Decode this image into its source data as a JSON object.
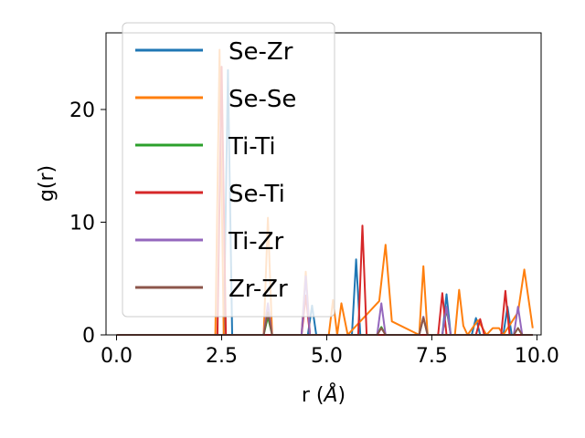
{
  "chart_data": {
    "type": "line",
    "xlabel": "r (",
    "xlabel_unit": "Å",
    "xlabel_close": ")",
    "ylabel": "g(r)",
    "xlim": [
      -0.25,
      10.1
    ],
    "ylim": [
      0,
      26.8
    ],
    "xticks": [
      0.0,
      2.5,
      5.0,
      7.5,
      10.0
    ],
    "xtick_labels": [
      "0.0",
      "2.5",
      "5.0",
      "7.5",
      "10.0"
    ],
    "yticks": [
      0,
      10,
      20
    ],
    "ytick_labels": [
      "0",
      "10",
      "20"
    ],
    "grid": false,
    "legend_position": "upper-left",
    "series": [
      {
        "name": "Se-Zr",
        "color": "#1f77b4",
        "x": [
          0.0,
          2.4,
          2.55,
          2.65,
          2.75,
          4.55,
          4.65,
          4.75,
          5.6,
          5.7,
          5.8,
          7.75,
          7.85,
          7.95,
          8.45,
          8.55,
          8.65,
          9.2,
          9.3,
          9.4,
          9.9
        ],
        "y": [
          0,
          0,
          0,
          23.5,
          0,
          0,
          2.6,
          0,
          0,
          6.7,
          0,
          0,
          3.6,
          0,
          0,
          1.5,
          0,
          0,
          2.5,
          0,
          0
        ]
      },
      {
        "name": "Se-Se",
        "color": "#ff7f0e",
        "x": [
          0.0,
          2.35,
          2.45,
          2.55,
          3.5,
          3.6,
          3.7,
          4.4,
          4.5,
          4.6,
          5.05,
          5.15,
          5.25,
          5.35,
          5.5,
          6.25,
          6.4,
          6.55,
          7.2,
          7.3,
          7.4,
          8.05,
          8.15,
          8.25,
          8.35,
          8.6,
          8.8,
          8.95,
          9.1,
          9.2,
          9.55,
          9.7,
          9.9
        ],
        "y": [
          0,
          0,
          25.3,
          0,
          0,
          10.4,
          0,
          0,
          5.6,
          0,
          0,
          3.1,
          0,
          2.8,
          0,
          3.0,
          8.0,
          1.2,
          0,
          6.1,
          0,
          0,
          4.0,
          0.8,
          0,
          1.3,
          0,
          0.6,
          0.6,
          0,
          2.0,
          5.8,
          0.6
        ]
      },
      {
        "name": "Ti-Ti",
        "color": "#2ca02c",
        "x": [
          0.0,
          3.5,
          3.6,
          3.7,
          6.2,
          6.3,
          6.4,
          7.2,
          7.3,
          7.4,
          7.75,
          7.85,
          7.95,
          9.45,
          9.55,
          9.65,
          9.9
        ],
        "y": [
          0,
          0,
          1.6,
          0,
          0,
          0.7,
          0,
          0,
          1.6,
          0,
          0,
          2.3,
          0,
          0,
          0.6,
          0,
          0
        ]
      },
      {
        "name": "Se-Ti",
        "color": "#d62728",
        "x": [
          0.0,
          2.4,
          2.5,
          2.6,
          4.4,
          4.5,
          4.6,
          5.75,
          5.85,
          5.95,
          7.65,
          7.75,
          7.85,
          8.55,
          8.65,
          8.75,
          9.15,
          9.25,
          9.35,
          9.9
        ],
        "y": [
          0,
          0,
          23.8,
          0,
          0,
          3.5,
          0,
          0,
          9.7,
          0,
          0,
          3.7,
          0,
          0,
          1.4,
          0,
          0,
          3.9,
          0,
          0
        ]
      },
      {
        "name": "Ti-Zr",
        "color": "#9467bd",
        "x": [
          0.0,
          3.5,
          3.6,
          3.7,
          4.4,
          4.5,
          4.6,
          6.2,
          6.3,
          6.4,
          7.2,
          7.3,
          7.4,
          7.75,
          7.85,
          7.95,
          9.45,
          9.55,
          9.65,
          9.9
        ],
        "y": [
          0,
          0,
          2.8,
          0,
          0,
          5.2,
          0,
          0,
          2.8,
          0,
          0,
          1.6,
          0,
          0,
          2.5,
          0,
          0,
          2.5,
          0,
          0
        ]
      },
      {
        "name": "Zr-Zr",
        "color": "#8c564b",
        "x": [
          0.0,
          3.5,
          3.6,
          3.7,
          6.2,
          6.3,
          6.4,
          7.2,
          7.3,
          7.4,
          9.45,
          9.55,
          9.65,
          9.9
        ],
        "y": [
          0,
          0,
          2.0,
          0,
          0,
          0.6,
          0,
          0,
          1.5,
          0,
          0,
          0.6,
          0,
          0
        ]
      }
    ]
  }
}
